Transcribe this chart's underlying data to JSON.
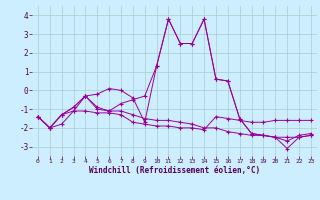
{
  "xlabel": "Windchill (Refroidissement éolien,°C)",
  "background_color": "#cceeff",
  "line_color": "#990099",
  "grid_color": "#aacccc",
  "xlim": [
    -0.5,
    23.5
  ],
  "ylim": [
    -3.5,
    4.5
  ],
  "yticks": [
    -3,
    -2,
    -1,
    0,
    1,
    2,
    3,
    4
  ],
  "xticks": [
    0,
    1,
    2,
    3,
    4,
    5,
    6,
    7,
    8,
    9,
    10,
    11,
    12,
    13,
    14,
    15,
    16,
    17,
    18,
    19,
    20,
    21,
    22,
    23
  ],
  "line1": [
    -1.4,
    -2.0,
    -1.8,
    -1.1,
    -1.1,
    -1.2,
    -1.2,
    -1.3,
    -1.7,
    -1.8,
    -1.9,
    -1.9,
    -2.0,
    -2.0,
    -2.1,
    -1.4,
    -1.5,
    -1.6,
    -1.7,
    -1.7,
    -1.6,
    -1.6,
    -1.6,
    -1.6
  ],
  "line2": [
    -1.4,
    -2.0,
    -1.3,
    -1.1,
    -0.3,
    -0.2,
    0.1,
    0.0,
    -0.4,
    -1.7,
    1.3,
    3.8,
    2.5,
    2.5,
    3.8,
    0.6,
    0.5,
    -1.5,
    -2.3,
    -2.4,
    -2.5,
    -2.7,
    -2.4,
    -2.3
  ],
  "line3": [
    -1.4,
    -2.0,
    -1.3,
    -0.9,
    -0.3,
    -1.0,
    -1.1,
    -1.1,
    -1.3,
    -1.5,
    -1.6,
    -1.6,
    -1.7,
    -1.8,
    -2.0,
    -2.0,
    -2.2,
    -2.3,
    -2.4,
    -2.4,
    -2.5,
    -2.5,
    -2.5,
    -2.4
  ],
  "line4": [
    -1.4,
    -2.0,
    -1.3,
    -0.9,
    -0.3,
    -0.9,
    -1.1,
    -0.7,
    -0.5,
    -0.3,
    1.3,
    3.8,
    2.5,
    2.5,
    3.8,
    0.6,
    0.5,
    -1.5,
    -2.3,
    -2.4,
    -2.5,
    -3.1,
    -2.5,
    -2.4
  ]
}
